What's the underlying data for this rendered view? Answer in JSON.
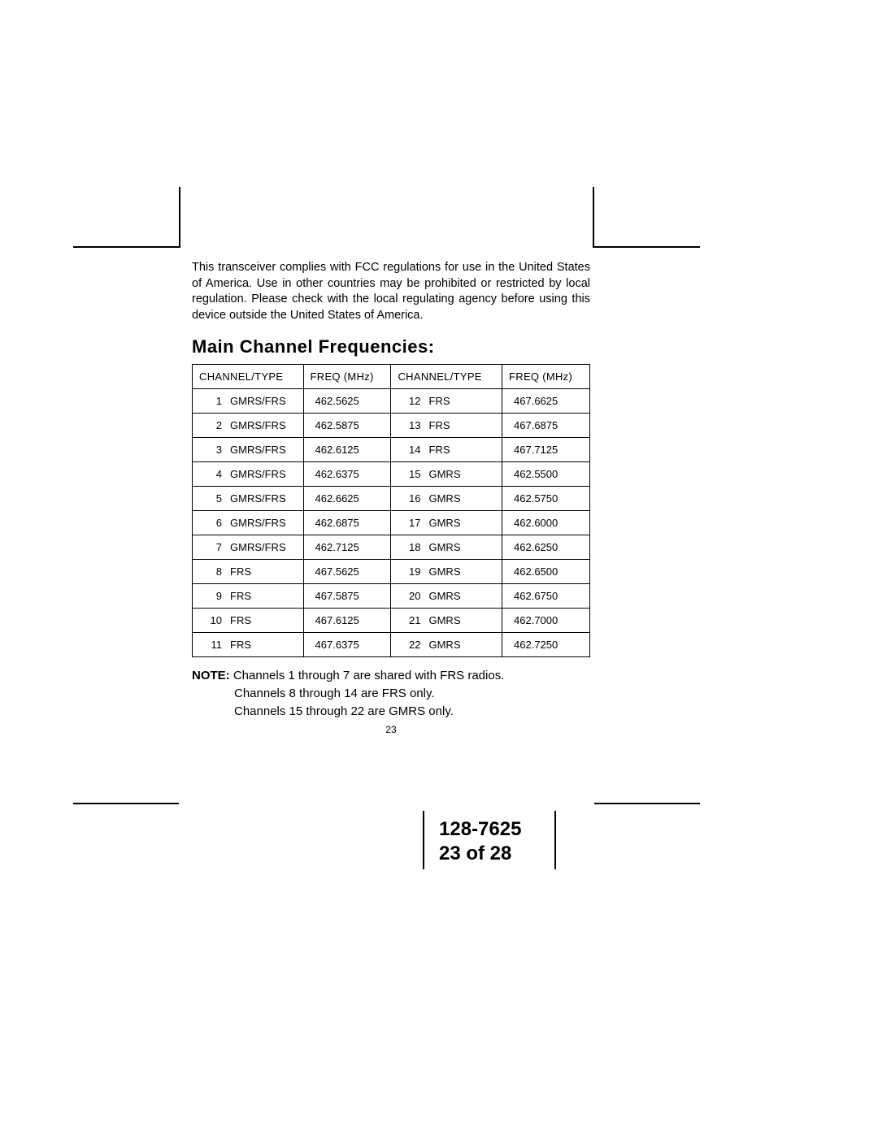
{
  "intro": "This transceiver complies with FCC regulations for use in the United States of America.  Use in other countries may be prohibited or restricted by local regulation.  Please check with the local regulating agency before using this device outside the United States of America.",
  "heading": "Main Channel Frequencies:",
  "table": {
    "headers": {
      "col1": "CHANNEL/TYPE",
      "col2": "FREQ (MHz)",
      "col3": "CHANNEL/TYPE",
      "col4": "FREQ (MHz)"
    },
    "rows": [
      {
        "n1": "1",
        "t1": "GMRS/FRS",
        "f1": "462.5625",
        "n2": "12",
        "t2": "FRS",
        "f2": "467.6625"
      },
      {
        "n1": "2",
        "t1": "GMRS/FRS",
        "f1": "462.5875",
        "n2": "13",
        "t2": "FRS",
        "f2": "467.6875"
      },
      {
        "n1": "3",
        "t1": "GMRS/FRS",
        "f1": "462.6125",
        "n2": "14",
        "t2": "FRS",
        "f2": "467.7125"
      },
      {
        "n1": "4",
        "t1": "GMRS/FRS",
        "f1": "462.6375",
        "n2": "15",
        "t2": "GMRS",
        "f2": "462.5500"
      },
      {
        "n1": "5",
        "t1": "GMRS/FRS",
        "f1": "462.6625",
        "n2": "16",
        "t2": "GMRS",
        "f2": "462.5750"
      },
      {
        "n1": "6",
        "t1": "GMRS/FRS",
        "f1": "462.6875",
        "n2": "17",
        "t2": "GMRS",
        "f2": "462.6000"
      },
      {
        "n1": "7",
        "t1": "GMRS/FRS",
        "f1": "462.7125",
        "n2": "18",
        "t2": "GMRS",
        "f2": "462.6250"
      },
      {
        "n1": "8",
        "t1": "FRS",
        "f1": "467.5625",
        "n2": "19",
        "t2": "GMRS",
        "f2": "462.6500"
      },
      {
        "n1": "9",
        "t1": "FRS",
        "f1": "467.5875",
        "n2": "20",
        "t2": "GMRS",
        "f2": "462.6750"
      },
      {
        "n1": "10",
        "t1": "FRS",
        "f1": "467.6125",
        "n2": "21",
        "t2": "GMRS",
        "f2": "462.7000"
      },
      {
        "n1": "11",
        "t1": "FRS",
        "f1": "467.6375",
        "n2": "22",
        "t2": "GMRS",
        "f2": "462.7250"
      }
    ]
  },
  "note": {
    "label": "NOTE:",
    "line1": " Channels 1 through 7 are shared with FRS radios.",
    "line2": "Channels 8 through 14 are FRS only.",
    "line3": "Channels 15 through 22 are GMRS only."
  },
  "page_small": "23",
  "footer": {
    "doc_num": "128-7625",
    "page": "23 of 28"
  }
}
